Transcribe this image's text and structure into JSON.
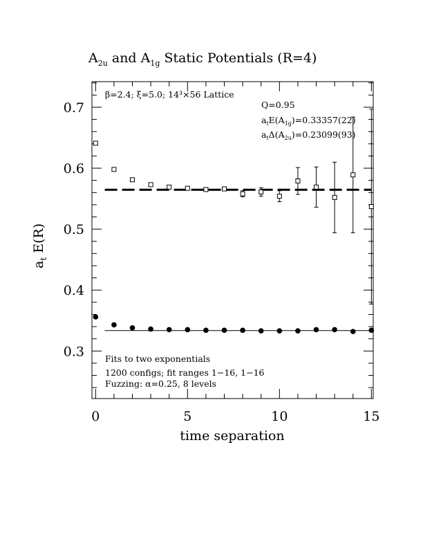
{
  "chart_data": {
    "type": "scatter",
    "title_main": "A",
    "title_sub1": "2u",
    "title_mid": " and A",
    "title_sub2": "1g",
    "title_end": " Static Potentials (R=4)",
    "xlabel": "time separation",
    "ylabel_main": "a",
    "ylabel_sub": "t",
    "ylabel_end": " E(R)",
    "xlim": [
      -0.2,
      15.1
    ],
    "ylim": [
      0.222,
      0.742
    ],
    "x_ticks": [
      0,
      5,
      10,
      15
    ],
    "y_ticks": [
      0.3,
      0.4,
      0.5,
      0.6,
      0.7
    ],
    "x_tick_labels": [
      "0",
      "5",
      "10",
      "15"
    ],
    "y_tick_labels": [
      "0.3",
      "0.4",
      "0.5",
      "0.6",
      "0.7"
    ],
    "annotations": {
      "top_left": "β=2.4; ξ=5.0; 14³×56 Lattice",
      "q_value": "Q=0.95",
      "e_main": "a",
      "e_sub": "t",
      "e_mid": "E(A",
      "e_sub2": "1g",
      "e_end": ")=0.33357(22)",
      "d_main": "a",
      "d_sub": "t",
      "d_mid": "Δ(A",
      "d_sub2": "2u",
      "d_end": ")=0.23099(93)",
      "bottom_line1": "Fits to two exponentials",
      "bottom_line2": "1200 configs; fit ranges 1−16, 1−16",
      "bottom_line3": "Fuzzing: α=0.25, 8 levels"
    },
    "series": [
      {
        "marker": "filled-circle",
        "x": [
          0,
          1,
          2,
          3,
          4,
          5,
          6,
          7,
          8,
          9,
          10,
          11,
          12,
          13,
          14,
          15
        ],
        "y": [
          0.356,
          0.343,
          0.338,
          0.336,
          0.335,
          0.335,
          0.334,
          0.334,
          0.334,
          0.333,
          0.333,
          0.333,
          0.335,
          0.335,
          0.332,
          0.334
        ],
        "err": [
          0.002,
          0.001,
          0.001,
          0.001,
          0.001,
          0.001,
          0.001,
          0.001,
          0.001,
          0.001,
          0.001,
          0.001,
          0.001,
          0.001,
          0.001,
          0.001
        ]
      },
      {
        "marker": "open-square",
        "x": [
          0,
          1,
          2,
          3,
          4,
          5,
          6,
          7,
          8,
          9,
          10,
          11,
          12,
          13,
          14,
          15
        ],
        "y": [
          0.641,
          0.598,
          0.581,
          0.573,
          0.569,
          0.567,
          0.565,
          0.566,
          0.558,
          0.561,
          0.554,
          0.579,
          0.569,
          0.552,
          0.589,
          0.537
        ],
        "err": [
          0.001,
          0.001,
          0.002,
          0.002,
          0.002,
          0.002,
          0.003,
          0.003,
          0.005,
          0.007,
          0.009,
          0.022,
          0.033,
          0.058,
          0.095,
          0.16
        ]
      }
    ],
    "fit_lines": [
      {
        "style": "solid",
        "x": [
          0.5,
          15
        ],
        "y": [
          0.3336,
          0.3336
        ]
      },
      {
        "style": "dashed",
        "x": [
          0.5,
          15
        ],
        "y": [
          0.5646,
          0.5646
        ]
      }
    ]
  }
}
